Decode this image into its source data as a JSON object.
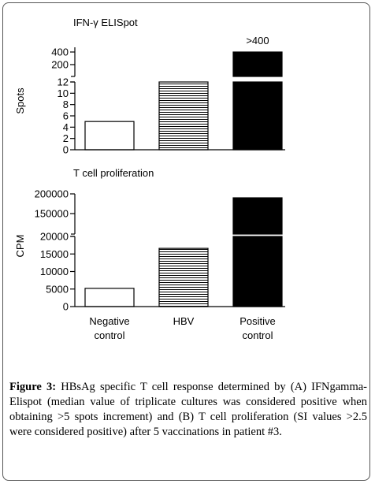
{
  "chart_data": [
    {
      "type": "bar",
      "title": "IFN-γ ELISpot",
      "y_label": "Spots",
      "values": [
        5,
        12,
        400
      ],
      "value_labels": [
        null,
        null,
        ">400"
      ],
      "bar_styles": [
        "open",
        "hatched",
        "solid"
      ],
      "y_segments": [
        {
          "ylim": [
            0,
            12
          ],
          "yticks": [
            0,
            2,
            4,
            6,
            8,
            10,
            12
          ]
        },
        {
          "ylim": [
            12,
            475
          ],
          "yticks": [
            200,
            400
          ]
        }
      ]
    },
    {
      "type": "bar",
      "title": "T cell proliferation",
      "y_label": "CPM",
      "categories": [
        "Negative control",
        "HBV",
        "Positive control"
      ],
      "values": [
        5200,
        16600,
        190000
      ],
      "bar_styles": [
        "open",
        "hatched",
        "solid"
      ],
      "y_segments": [
        {
          "ylim": [
            0,
            20000
          ],
          "yticks": [
            0,
            5000,
            10000,
            15000,
            20000
          ]
        },
        {
          "ylim": [
            98000,
            200000
          ],
          "yticks": [
            150000,
            200000
          ]
        }
      ]
    }
  ],
  "caption": {
    "label": "Figure 3:",
    "text": "HBsAg specific T cell response determined by (A) IFNgamma-Elispot (median value of triplicate cultures was considered positive when obtaining >5 spots increment) and (B) T cell proliferation (SI values >2.5 were considered positive) after 5 vaccinations in patient #3."
  }
}
